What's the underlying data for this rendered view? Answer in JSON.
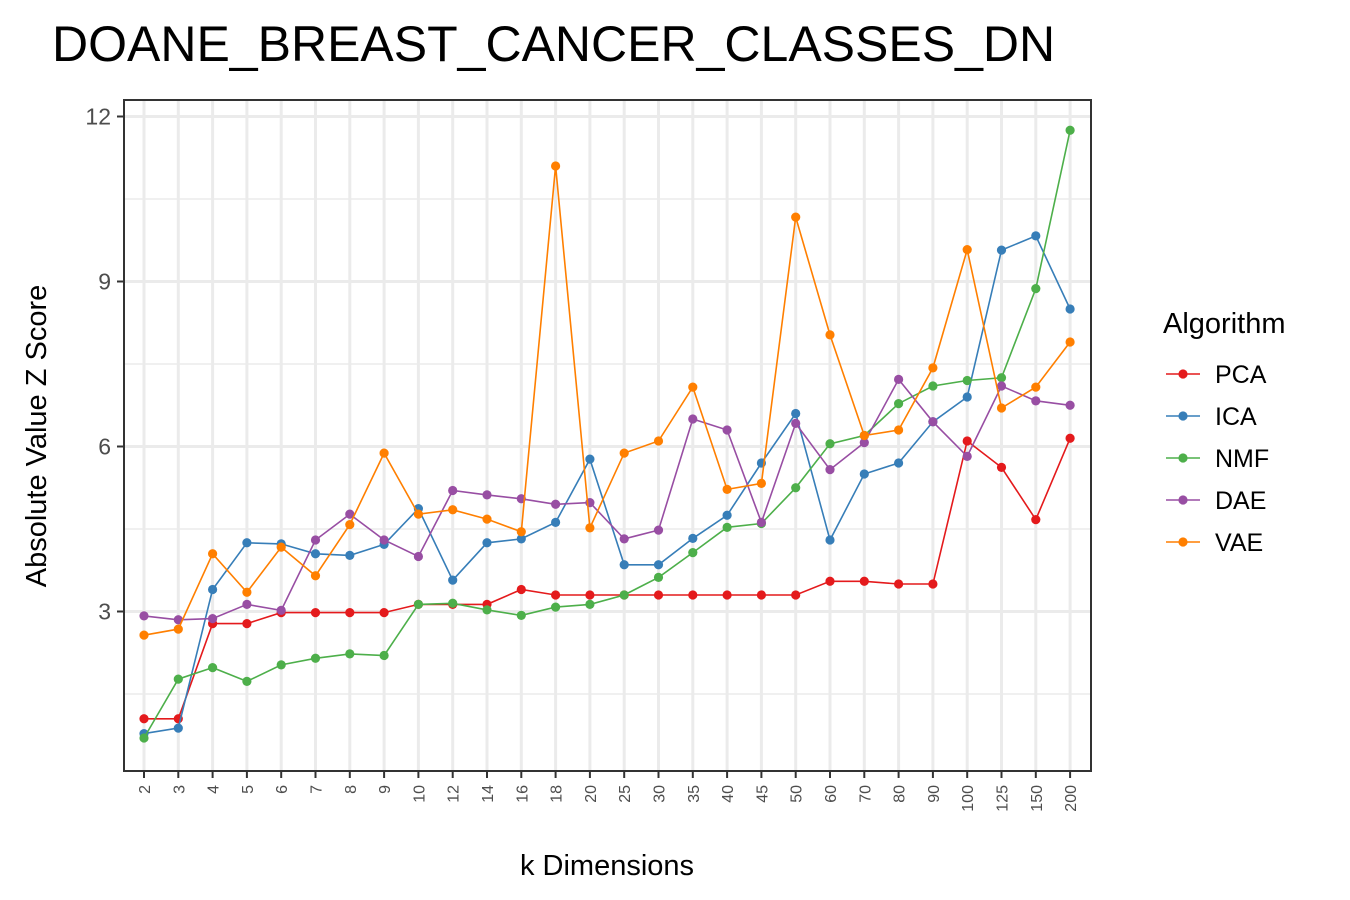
{
  "chart_data": {
    "type": "line",
    "title": "DOANE_BREAST_CANCER_CLASSES_DN",
    "xlabel": "k Dimensions",
    "ylabel": "Absolute Value Z Score",
    "categories": [
      "2",
      "3",
      "4",
      "5",
      "6",
      "7",
      "8",
      "9",
      "10",
      "12",
      "14",
      "16",
      "18",
      "20",
      "25",
      "30",
      "35",
      "40",
      "45",
      "50",
      "60",
      "70",
      "80",
      "90",
      "100",
      "125",
      "150",
      "200"
    ],
    "ylim": [
      0.1,
      12.3
    ],
    "yticks": [
      3,
      6,
      9,
      12
    ],
    "grid": true,
    "legend": {
      "title": "Algorithm",
      "position": "right"
    },
    "series": [
      {
        "name": "PCA",
        "color": "#e41a1c",
        "values": [
          1.05,
          1.05,
          2.78,
          2.78,
          2.98,
          2.98,
          2.98,
          2.98,
          3.13,
          3.13,
          3.13,
          3.4,
          3.3,
          3.3,
          3.3,
          3.3,
          3.3,
          3.3,
          3.3,
          3.3,
          3.55,
          3.55,
          3.5,
          3.5,
          6.1,
          5.62,
          4.67,
          6.15
        ]
      },
      {
        "name": "ICA",
        "color": "#377eb8",
        "values": [
          0.78,
          0.88,
          3.4,
          4.25,
          4.23,
          4.05,
          4.02,
          4.22,
          4.87,
          3.57,
          4.25,
          4.32,
          4.62,
          5.77,
          3.85,
          3.85,
          4.33,
          4.75,
          5.7,
          6.6,
          4.3,
          5.5,
          5.7,
          6.45,
          6.9,
          9.57,
          9.83,
          8.5
        ]
      },
      {
        "name": "NMF",
        "color": "#4daf4a",
        "values": [
          0.7,
          1.77,
          1.98,
          1.73,
          2.03,
          2.15,
          2.23,
          2.2,
          3.13,
          3.15,
          3.03,
          2.93,
          3.08,
          3.13,
          3.3,
          3.62,
          4.07,
          4.53,
          4.6,
          5.25,
          6.05,
          6.2,
          6.78,
          7.1,
          7.2,
          7.25,
          8.87,
          11.75
        ]
      },
      {
        "name": "DAE",
        "color": "#984ea3",
        "values": [
          2.92,
          2.85,
          2.87,
          3.13,
          3.02,
          4.3,
          4.77,
          4.3,
          4.0,
          5.2,
          5.12,
          5.05,
          4.95,
          4.98,
          4.32,
          4.48,
          6.5,
          6.3,
          4.62,
          6.42,
          5.58,
          6.07,
          7.22,
          6.45,
          5.82,
          7.1,
          6.83,
          6.75
        ]
      },
      {
        "name": "VAE",
        "color": "#ff7f00",
        "values": [
          2.57,
          2.68,
          4.05,
          3.35,
          4.17,
          3.65,
          4.58,
          5.88,
          4.77,
          4.85,
          4.68,
          4.45,
          11.1,
          4.52,
          5.88,
          6.1,
          7.08,
          5.22,
          5.33,
          10.17,
          8.03,
          6.2,
          6.3,
          7.43,
          9.58,
          6.7,
          7.08,
          7.9
        ]
      }
    ]
  }
}
